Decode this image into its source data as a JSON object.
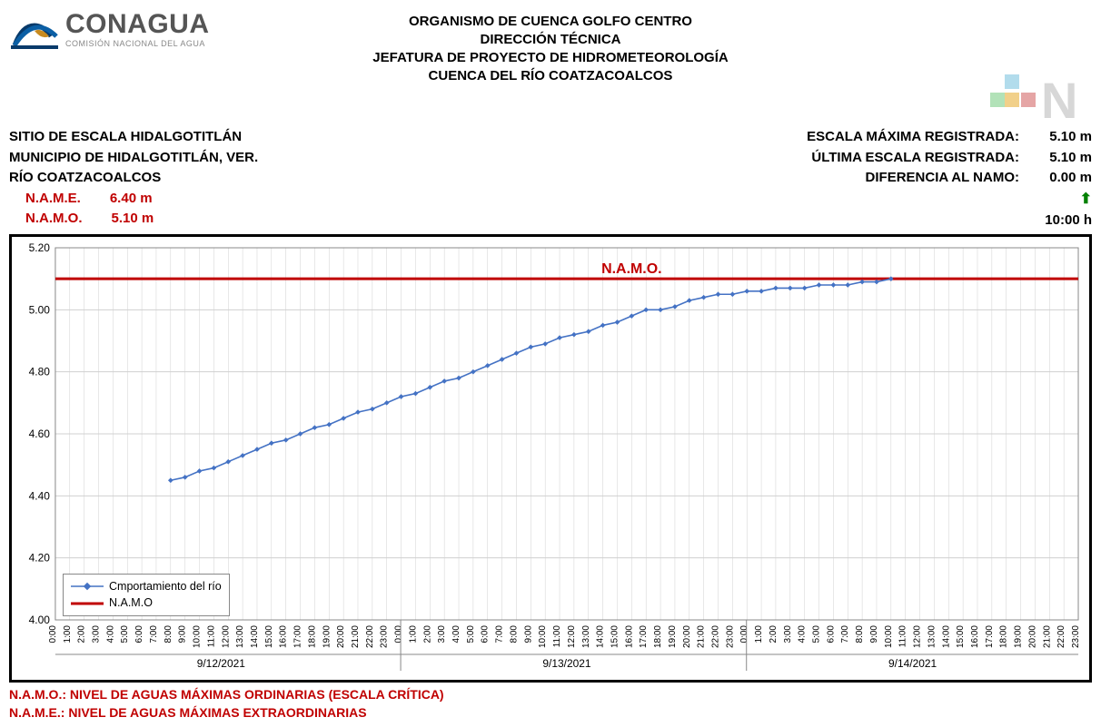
{
  "logo": {
    "main": "CONAGUA",
    "sub": "COMISIÓN NACIONAL DEL AGUA"
  },
  "titles": {
    "l1": "ORGANISMO DE CUENCA GOLFO CENTRO",
    "l2": "DIRECCIÓN TÉCNICA",
    "l3": "JEFATURA DE PROYECTO DE HIDROMETEOROLOGÍA",
    "l4": "CUENCA DEL RÍO COATZACOALCOS"
  },
  "left": {
    "sitio": "SITIO DE ESCALA HIDALGOTITLÁN",
    "municipio": "MUNICIPIO DE HIDALGOTITLÁN, VER.",
    "rio": "RÍO COATZACOALCOS",
    "name_label": "N.A.M.E.",
    "name_val": "6.40 m",
    "namo_label": "N.A.M.O.",
    "namo_val": "5.10 m"
  },
  "right": {
    "max_label": "ESCALA MÁXIMA REGISTRADA:",
    "max_val": "5.10 m",
    "last_label": "ÚLTIMA ESCALA REGISTRADA:",
    "last_val": "5.10 m",
    "diff_label": "DIFERENCIA AL NAMO:",
    "diff_val": "0.00 m",
    "time_val": "10:00 h"
  },
  "chart": {
    "type": "line",
    "ylim": [
      4.0,
      5.2
    ],
    "ytick_step": 0.2,
    "yticks": [
      4.0,
      4.2,
      4.4,
      4.6,
      4.8,
      5.0,
      5.2
    ],
    "background_color": "#ffffff",
    "grid_color": "#d0d0d0",
    "axis_color": "#888888",
    "namo_value": 5.1,
    "namo_line_color": "#c00000",
    "namo_line_width": 3,
    "namo_label": "N.A.M.O.",
    "series_color": "#4472c4",
    "series_line_width": 1.6,
    "marker_style": "diamond",
    "marker_size": 4,
    "data_start_index": 8,
    "x_hours": [
      "0:00",
      "1:00",
      "2:00",
      "3:00",
      "4:00",
      "5:00",
      "6:00",
      "7:00",
      "8:00",
      "9:00",
      "10:00",
      "11:00",
      "12:00",
      "13:00",
      "14:00",
      "15:00",
      "16:00",
      "17:00",
      "18:00",
      "19:00",
      "20:00",
      "21:00",
      "22:00",
      "23:00"
    ],
    "x_dates": [
      "9/12/2021",
      "9/13/2021",
      "9/14/2021"
    ],
    "values": [
      4.45,
      4.46,
      4.48,
      4.49,
      4.51,
      4.53,
      4.55,
      4.57,
      4.58,
      4.6,
      4.62,
      4.63,
      4.65,
      4.67,
      4.68,
      4.7,
      4.72,
      4.73,
      4.75,
      4.77,
      4.78,
      4.8,
      4.82,
      4.84,
      4.86,
      4.88,
      4.89,
      4.91,
      4.92,
      4.93,
      4.95,
      4.96,
      4.98,
      5.0,
      5.0,
      5.01,
      5.03,
      5.04,
      5.05,
      5.05,
      5.06,
      5.06,
      5.07,
      5.07,
      5.07,
      5.08,
      5.08,
      5.08,
      5.09,
      5.09,
      5.1
    ],
    "legend": {
      "series": "Cmportamiento del río",
      "namo": "N.A.M.O"
    }
  },
  "footer": {
    "namo": "N.A.M.O.: NIVEL DE AGUAS MÁXIMAS ORDINARIAS (ESCALA CRÍTICA)",
    "name": "N.A.M.E.: NIVEL DE AGUAS MÁXIMAS EXTRAORDINARIAS"
  }
}
